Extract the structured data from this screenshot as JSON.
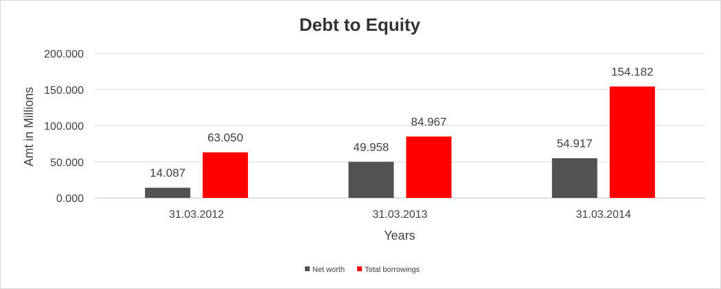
{
  "chart_data": {
    "type": "bar",
    "title": "Debt to Equity",
    "xlabel": "Years",
    "ylabel": "Amt in Millions",
    "categories": [
      "31.03.2012",
      "31.03.2013",
      "31.03.2014"
    ],
    "series": [
      {
        "name": "Net worth",
        "values": [
          14.087,
          49.958,
          54.917
        ],
        "labels": [
          "14.087",
          "49.958",
          "54.917"
        ],
        "color": "#525252"
      },
      {
        "name": "Total borrowings",
        "values": [
          63.05,
          84.967,
          154.182
        ],
        "labels": [
          "63.050",
          "84.967",
          "154.182"
        ],
        "color": "#ff0000"
      }
    ],
    "ylim": [
      0,
      200
    ],
    "yticks": [
      0,
      50,
      100,
      150,
      200
    ],
    "ytick_labels": [
      "0.000",
      "50.000",
      "100.000",
      "150.000",
      "200.000"
    ],
    "grid": true,
    "legend_position": "bottom"
  }
}
